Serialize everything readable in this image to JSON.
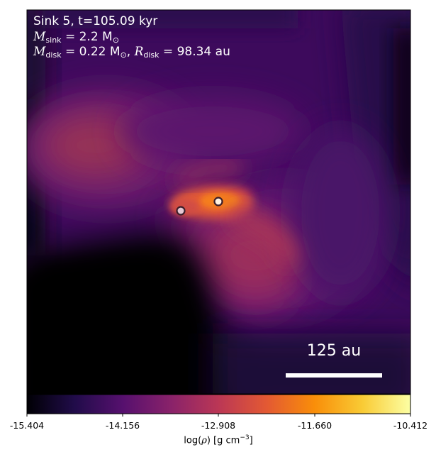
{
  "annotation": {
    "line1": "Sink 5, t=105.09 kyr",
    "msink_label": "M",
    "msink_sub": "sink",
    "msink_value": " = 2.2 M",
    "msink_unit_sub": "⊙",
    "mdisk_label": "M",
    "mdisk_sub": "disk",
    "mdisk_value": " = 0.22 M",
    "mdisk_unit_sub": "⊙",
    "rdisk_label": "R",
    "rdisk_sub": "disk",
    "rdisk_value": " = 98.34 au"
  },
  "scalebar": {
    "label": "125 au"
  },
  "colorbar": {
    "ticks": [
      "-15.404",
      "-14.156",
      "-12.908",
      "-11.660",
      "-10.412"
    ],
    "label_prefix": "log(",
    "label_rho": "ρ",
    "label_mid": ") [g cm",
    "label_exp": "−3",
    "label_suffix": "]",
    "colormap": "inferno",
    "colors": [
      "#000004",
      "#210c4a",
      "#56106e",
      "#89226a",
      "#bb3755",
      "#e35933",
      "#f98e09",
      "#f9cb35",
      "#fcffa4"
    ]
  },
  "sinks": [
    {
      "fill": "#e6c8d4",
      "edge": "#3a1e2a"
    },
    {
      "fill": "#fff2e0",
      "edge": "#3a1e2a"
    }
  ]
}
